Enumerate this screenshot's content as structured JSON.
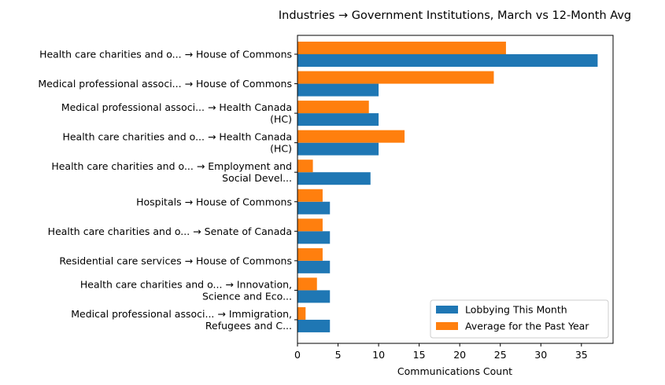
{
  "chart_data": {
    "type": "bar",
    "orientation": "horizontal",
    "title": "Industries → Government Institutions, March vs 12-Month Avg",
    "xlabel": "Communications Count",
    "ylabel": "",
    "xlim": [
      0,
      38.9
    ],
    "xticks": [
      "0",
      "5",
      "10",
      "15",
      "20",
      "25",
      "30",
      "35"
    ],
    "grid": false,
    "legend_position": "lower-right",
    "categories": [
      [
        "Health care charities and o... → House of Commons"
      ],
      [
        "Medical professional associ... → House of Commons"
      ],
      [
        "Medical professional associ... → Health Canada",
        "(HC)"
      ],
      [
        "Health care charities and o... → Health Canada",
        "(HC)"
      ],
      [
        "Health care charities and o... → Employment and",
        "Social Devel..."
      ],
      [
        "Hospitals → House of Commons"
      ],
      [
        "Health care charities and o... → Senate of Canada"
      ],
      [
        "Residential care services → House of Commons"
      ],
      [
        "Health care charities and o... → Innovation,",
        "Science and Eco..."
      ],
      [
        "Medical professional associ... → Immigration,",
        "Refugees and C..."
      ]
    ],
    "series": [
      {
        "name": "Lobbying This Month",
        "color": "#1f77b4",
        "values": [
          37,
          10,
          10,
          10,
          9,
          4,
          4,
          4,
          4,
          4
        ]
      },
      {
        "name": "Average for the Past Year",
        "color": "#ff7f0e",
        "values": [
          25.7,
          24.2,
          8.8,
          13.2,
          1.9,
          3.1,
          3.1,
          3.1,
          2.4,
          1.0
        ]
      }
    ]
  }
}
